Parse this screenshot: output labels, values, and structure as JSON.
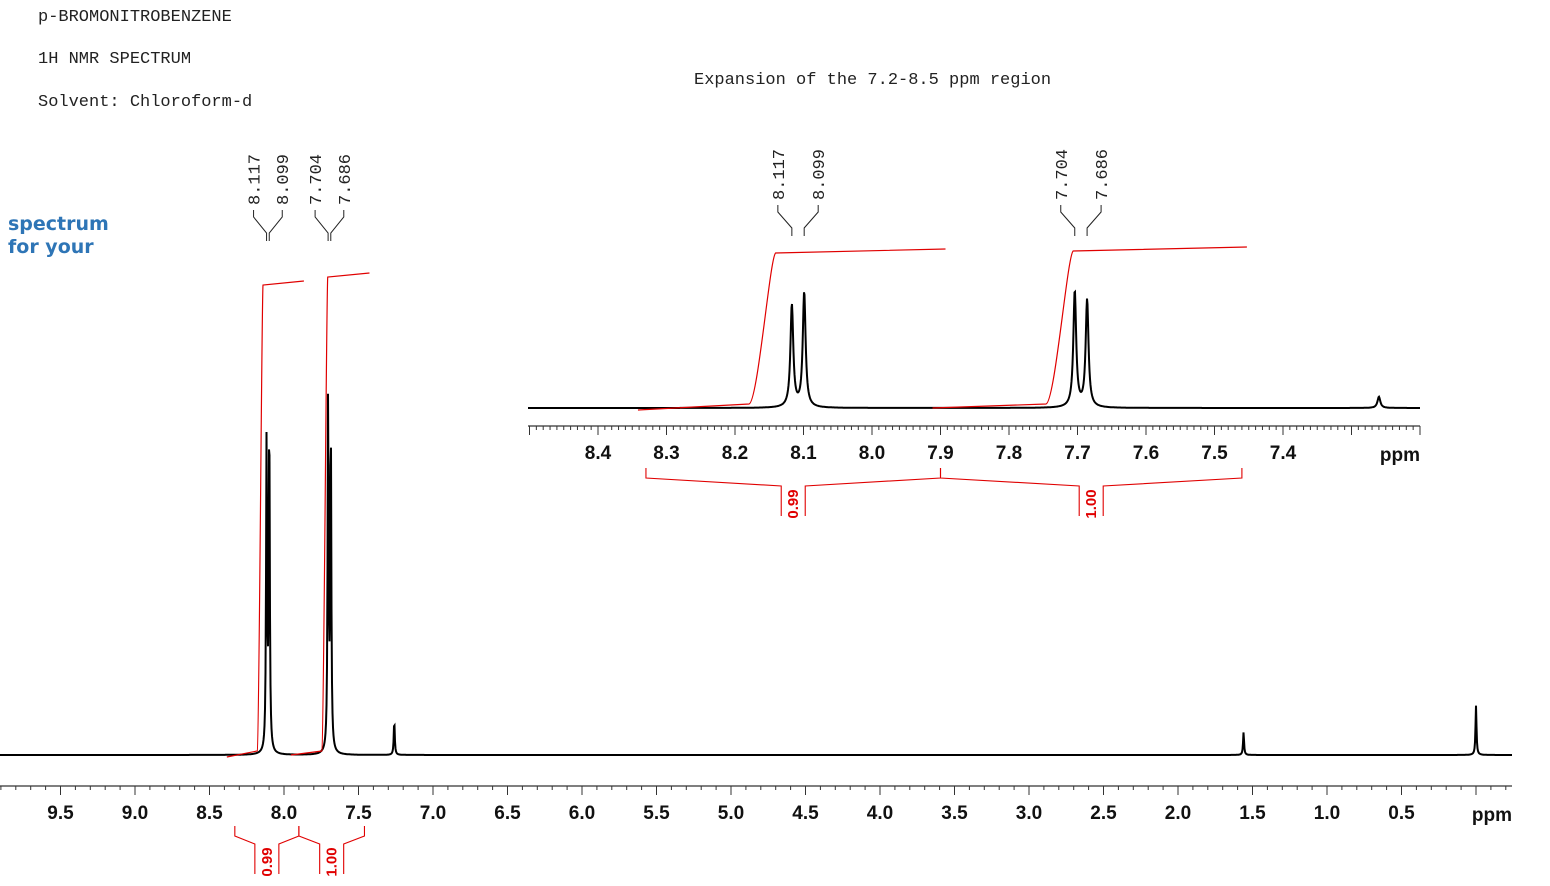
{
  "header": {
    "compound": "p-BROMONITROBENZENE",
    "experiment": "1H NMR SPECTRUM",
    "solvent": "Solvent: Chloroform-d"
  },
  "watermark": {
    "line1": "spectrum",
    "line2": "for   your"
  },
  "inset": {
    "title": "Expansion of the 7.2-8.5 ppm region"
  },
  "colors": {
    "spectrum": "#000000",
    "integral": "#e00000",
    "watermark": "#2e75b6"
  },
  "chart_data": [
    {
      "type": "line",
      "title": "p-BROMONITROBENZENE 1H NMR SPECTRUM (full)",
      "xlabel": "ppm",
      "xlim": [
        10.0,
        -0.25
      ],
      "x_ticks": [
        "9.5",
        "9.0",
        "8.5",
        "8.0",
        "7.5",
        "7.0",
        "6.5",
        "6.0",
        "5.5",
        "5.0",
        "4.5",
        "4.0",
        "3.5",
        "3.0",
        "2.5",
        "2.0",
        "1.5",
        "1.0",
        "0.5"
      ],
      "peaks": [
        {
          "ppm": 8.117,
          "height": 0.82,
          "label": "8.117"
        },
        {
          "ppm": 8.099,
          "height": 0.89,
          "label": "8.099"
        },
        {
          "ppm": 7.704,
          "height": 0.94,
          "label": "7.704"
        },
        {
          "ppm": 7.686,
          "height": 0.87,
          "label": "7.686"
        },
        {
          "ppm": 7.26,
          "height": 0.09,
          "label": ""
        },
        {
          "ppm": 1.56,
          "height": 0.06,
          "label": ""
        },
        {
          "ppm": 0.0,
          "height": 0.13,
          "label": ""
        }
      ],
      "integrals": [
        {
          "from": 8.33,
          "to": 7.9,
          "value": "0.99"
        },
        {
          "from": 7.9,
          "to": 7.46,
          "value": "1.00"
        }
      ]
    },
    {
      "type": "line",
      "title": "Expansion of the 7.2-8.5 ppm region",
      "xlabel": "ppm",
      "xlim": [
        8.5,
        7.2
      ],
      "x_ticks": [
        "8.4",
        "8.3",
        "8.2",
        "8.1",
        "8.0",
        "7.9",
        "7.8",
        "7.7",
        "7.6",
        "7.5",
        "7.4"
      ],
      "peaks": [
        {
          "ppm": 8.117,
          "height": 0.82,
          "label": "8.117"
        },
        {
          "ppm": 8.099,
          "height": 0.92,
          "label": "8.099"
        },
        {
          "ppm": 7.704,
          "height": 0.93,
          "label": "7.704"
        },
        {
          "ppm": 7.686,
          "height": 0.86,
          "label": "7.686"
        },
        {
          "ppm": 7.26,
          "height": 0.09,
          "label": ""
        }
      ],
      "integrals": [
        {
          "from": 8.33,
          "to": 7.9,
          "value": "0.99"
        },
        {
          "from": 7.9,
          "to": 7.46,
          "value": "1.00"
        }
      ]
    }
  ]
}
